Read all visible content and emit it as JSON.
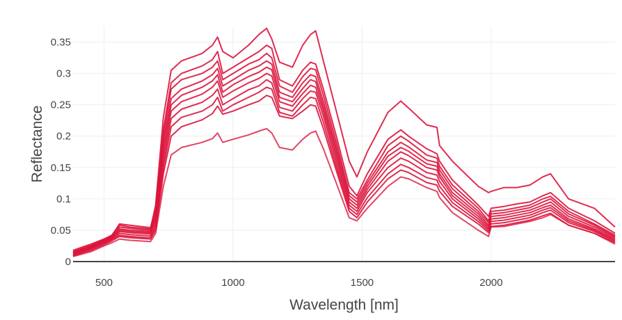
{
  "chart_data": {
    "type": "line",
    "title": "",
    "xlabel": "Wavelength [nm]",
    "ylabel": "Reflectance",
    "xlim": [
      380,
      2480
    ],
    "ylim": [
      0,
      0.375
    ],
    "x_ticks": [
      500,
      1000,
      1500,
      2000
    ],
    "x_tick_labels": [
      "500",
      "1000",
      "1500",
      "2000"
    ],
    "y_ticks": [
      0,
      0.05,
      0.1,
      0.15,
      0.2,
      0.25,
      0.3,
      0.35
    ],
    "y_tick_labels": [
      "0",
      "0.05",
      "0.1",
      "0.15",
      "0.2",
      "0.25",
      "0.3",
      "0.35"
    ],
    "grid": true,
    "legend": "none",
    "line_color": "#dc143c",
    "x": [
      380,
      450,
      500,
      530,
      560,
      600,
      680,
      700,
      730,
      760,
      800,
      880,
      920,
      940,
      960,
      1000,
      1060,
      1100,
      1130,
      1150,
      1180,
      1230,
      1270,
      1300,
      1320,
      1350,
      1400,
      1450,
      1480,
      1520,
      1600,
      1650,
      1680,
      1750,
      1790,
      1800,
      1850,
      1950,
      1990,
      2000,
      2050,
      2100,
      2150,
      2200,
      2230,
      2300,
      2400,
      2480
    ],
    "series": [
      {
        "values": [
          0.018,
          0.028,
          0.036,
          0.042,
          0.058,
          0.055,
          0.052,
          0.09,
          0.23,
          0.305,
          0.32,
          0.332,
          0.345,
          0.358,
          0.335,
          0.325,
          0.345,
          0.362,
          0.372,
          0.355,
          0.318,
          0.31,
          0.345,
          0.362,
          0.368,
          0.32,
          0.24,
          0.16,
          0.135,
          0.175,
          0.238,
          0.256,
          0.245,
          0.218,
          0.214,
          0.185,
          0.16,
          0.12,
          0.11,
          0.112,
          0.118,
          0.118,
          0.122,
          0.135,
          0.14,
          0.1,
          0.085,
          0.055
        ]
      },
      {
        "values": [
          0.016,
          0.026,
          0.035,
          0.041,
          0.06,
          0.058,
          0.054,
          0.085,
          0.21,
          0.285,
          0.3,
          0.312,
          0.322,
          0.335,
          0.3,
          0.31,
          0.325,
          0.335,
          0.345,
          0.34,
          0.29,
          0.28,
          0.305,
          0.318,
          0.315,
          0.275,
          0.2,
          0.12,
          0.105,
          0.14,
          0.195,
          0.21,
          0.2,
          0.18,
          0.172,
          0.16,
          0.13,
          0.09,
          0.072,
          0.085,
          0.088,
          0.092,
          0.095,
          0.105,
          0.11,
          0.085,
          0.065,
          0.045
        ]
      },
      {
        "values": [
          0.015,
          0.025,
          0.034,
          0.04,
          0.055,
          0.053,
          0.05,
          0.08,
          0.2,
          0.275,
          0.29,
          0.3,
          0.31,
          0.32,
          0.29,
          0.3,
          0.315,
          0.322,
          0.332,
          0.325,
          0.28,
          0.27,
          0.295,
          0.308,
          0.306,
          0.265,
          0.19,
          0.11,
          0.1,
          0.13,
          0.185,
          0.2,
          0.192,
          0.17,
          0.165,
          0.152,
          0.122,
          0.085,
          0.065,
          0.08,
          0.082,
          0.086,
          0.09,
          0.1,
          0.104,
          0.08,
          0.06,
          0.042
        ]
      },
      {
        "values": [
          0.014,
          0.024,
          0.033,
          0.039,
          0.052,
          0.05,
          0.048,
          0.075,
          0.19,
          0.26,
          0.275,
          0.288,
          0.298,
          0.308,
          0.28,
          0.29,
          0.305,
          0.312,
          0.32,
          0.315,
          0.27,
          0.262,
          0.285,
          0.298,
          0.295,
          0.255,
          0.182,
          0.105,
          0.095,
          0.125,
          0.175,
          0.19,
          0.183,
          0.162,
          0.158,
          0.146,
          0.116,
          0.08,
          0.062,
          0.076,
          0.078,
          0.082,
          0.086,
          0.095,
          0.1,
          0.076,
          0.058,
          0.04
        ]
      },
      {
        "values": [
          0.013,
          0.023,
          0.032,
          0.038,
          0.05,
          0.048,
          0.046,
          0.07,
          0.18,
          0.25,
          0.265,
          0.278,
          0.288,
          0.298,
          0.27,
          0.282,
          0.295,
          0.302,
          0.31,
          0.306,
          0.262,
          0.255,
          0.276,
          0.29,
          0.287,
          0.247,
          0.175,
          0.1,
          0.09,
          0.12,
          0.168,
          0.182,
          0.176,
          0.156,
          0.152,
          0.14,
          0.11,
          0.076,
          0.058,
          0.072,
          0.074,
          0.078,
          0.082,
          0.09,
          0.095,
          0.072,
          0.055,
          0.038
        ]
      },
      {
        "values": [
          0.012,
          0.022,
          0.031,
          0.037,
          0.048,
          0.046,
          0.044,
          0.066,
          0.17,
          0.24,
          0.255,
          0.267,
          0.278,
          0.288,
          0.262,
          0.272,
          0.285,
          0.292,
          0.3,
          0.296,
          0.255,
          0.248,
          0.268,
          0.281,
          0.278,
          0.24,
          0.168,
          0.095,
          0.085,
          0.115,
          0.16,
          0.175,
          0.169,
          0.15,
          0.146,
          0.135,
          0.105,
          0.072,
          0.055,
          0.068,
          0.07,
          0.074,
          0.078,
          0.086,
          0.09,
          0.068,
          0.052,
          0.036
        ]
      },
      {
        "values": [
          0.011,
          0.021,
          0.03,
          0.036,
          0.045,
          0.043,
          0.041,
          0.06,
          0.16,
          0.228,
          0.243,
          0.254,
          0.265,
          0.275,
          0.25,
          0.26,
          0.274,
          0.28,
          0.29,
          0.285,
          0.246,
          0.24,
          0.26,
          0.272,
          0.27,
          0.232,
          0.16,
          0.09,
          0.08,
          0.11,
          0.15,
          0.165,
          0.16,
          0.142,
          0.138,
          0.128,
          0.1,
          0.068,
          0.052,
          0.064,
          0.066,
          0.07,
          0.074,
          0.082,
          0.086,
          0.065,
          0.05,
          0.034
        ]
      },
      {
        "values": [
          0.01,
          0.02,
          0.029,
          0.035,
          0.042,
          0.04,
          0.038,
          0.055,
          0.15,
          0.215,
          0.23,
          0.24,
          0.25,
          0.262,
          0.24,
          0.25,
          0.262,
          0.27,
          0.278,
          0.275,
          0.238,
          0.232,
          0.25,
          0.262,
          0.26,
          0.222,
          0.152,
          0.085,
          0.075,
          0.102,
          0.14,
          0.155,
          0.15,
          0.134,
          0.13,
          0.12,
          0.094,
          0.064,
          0.049,
          0.06,
          0.062,
          0.066,
          0.07,
          0.078,
          0.082,
          0.062,
          0.048,
          0.032
        ]
      },
      {
        "values": [
          0.009,
          0.018,
          0.027,
          0.033,
          0.04,
          0.038,
          0.036,
          0.05,
          0.14,
          0.2,
          0.215,
          0.226,
          0.236,
          0.248,
          0.235,
          0.24,
          0.25,
          0.256,
          0.265,
          0.262,
          0.232,
          0.228,
          0.24,
          0.25,
          0.248,
          0.212,
          0.145,
          0.08,
          0.07,
          0.095,
          0.132,
          0.146,
          0.142,
          0.126,
          0.122,
          0.112,
          0.088,
          0.06,
          0.046,
          0.056,
          0.058,
          0.062,
          0.066,
          0.073,
          0.077,
          0.058,
          0.045,
          0.03
        ]
      },
      {
        "values": [
          0.008,
          0.016,
          0.025,
          0.03,
          0.036,
          0.034,
          0.032,
          0.045,
          0.12,
          0.17,
          0.182,
          0.19,
          0.196,
          0.205,
          0.19,
          0.195,
          0.202,
          0.208,
          0.212,
          0.205,
          0.182,
          0.178,
          0.195,
          0.205,
          0.208,
          0.18,
          0.125,
          0.07,
          0.065,
          0.085,
          0.12,
          0.135,
          0.132,
          0.118,
          0.112,
          0.102,
          0.078,
          0.05,
          0.04,
          0.055,
          0.056,
          0.06,
          0.064,
          0.07,
          0.075,
          0.058,
          0.045,
          0.028
        ]
      }
    ]
  }
}
